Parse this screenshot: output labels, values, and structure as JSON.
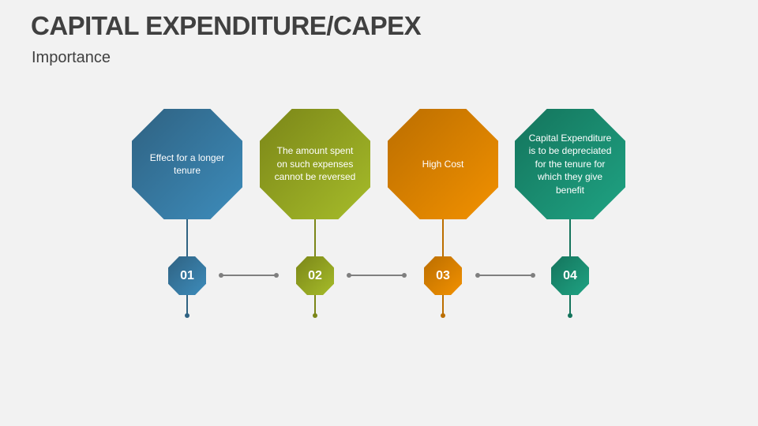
{
  "header": {
    "title": "CAPITAL EXPENDITURE/CAPEX",
    "subtitle": "Importance"
  },
  "steps": [
    {
      "number": "01",
      "text": "Effect for a longer tenure",
      "color_start": "#2f6282",
      "color_end": "#3d8cbb"
    },
    {
      "number": "02",
      "text": "The amount spent on such expenses cannot be reversed",
      "color_start": "#7b8618",
      "color_end": "#a6bc2a"
    },
    {
      "number": "03",
      "text": "High Cost",
      "color_start": "#bb6e00",
      "color_end": "#f29100"
    },
    {
      "number": "04",
      "text": "Capital Expenditure is to be depreciated for the tenure for which they give benefit",
      "color_start": "#14745c",
      "color_end": "#1fa383"
    }
  ],
  "connector_color": "#7f7f7f"
}
